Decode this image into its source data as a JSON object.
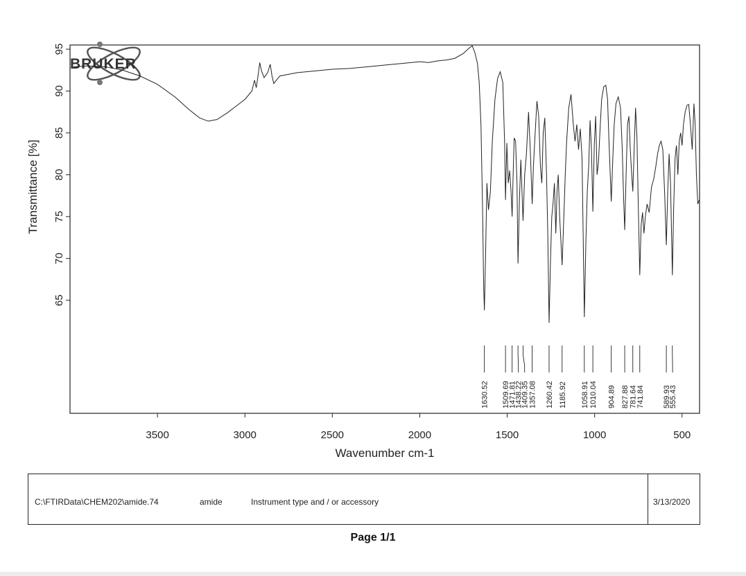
{
  "logo": {
    "text": "BRUKER"
  },
  "chart_data": {
    "type": "line",
    "xlabel": "Wavenumber cm-1",
    "ylabel": "Transmittance [%]",
    "xlim": [
      4000,
      400
    ],
    "ylim": [
      51.5,
      95.5
    ],
    "x_reversed": true,
    "grid": false,
    "x_ticks": [
      3500,
      3000,
      2500,
      2000,
      1500,
      1000,
      500
    ],
    "y_ticks": [
      65,
      70,
      75,
      80,
      85,
      90,
      95
    ],
    "peak_labels": [
      "1630.52",
      "1509.69",
      "1471.81",
      "1438.22",
      "1409.35",
      "1357.08",
      "1260.42",
      "1185.92",
      "1058.91",
      "1010.04",
      "904.89",
      "827.88",
      "781.64",
      "741.84",
      "589.93",
      "555.43"
    ],
    "series": [
      {
        "points": [
          [
            3980,
            92.9
          ],
          [
            3900,
            93.0
          ],
          [
            3800,
            92.9
          ],
          [
            3700,
            92.5
          ],
          [
            3600,
            91.8
          ],
          [
            3500,
            90.8
          ],
          [
            3400,
            89.3
          ],
          [
            3320,
            87.8
          ],
          [
            3260,
            86.8
          ],
          [
            3210,
            86.4
          ],
          [
            3160,
            86.6
          ],
          [
            3100,
            87.4
          ],
          [
            3050,
            88.2
          ],
          [
            3000,
            89.0
          ],
          [
            2960,
            90.0
          ],
          [
            2945,
            91.3
          ],
          [
            2935,
            90.4
          ],
          [
            2925,
            91.8
          ],
          [
            2915,
            93.4
          ],
          [
            2905,
            92.4
          ],
          [
            2890,
            91.6
          ],
          [
            2870,
            92.2
          ],
          [
            2855,
            93.2
          ],
          [
            2845,
            91.8
          ],
          [
            2835,
            90.9
          ],
          [
            2800,
            91.8
          ],
          [
            2700,
            92.2
          ],
          [
            2600,
            92.4
          ],
          [
            2500,
            92.6
          ],
          [
            2400,
            92.7
          ],
          [
            2300,
            92.9
          ],
          [
            2200,
            93.1
          ],
          [
            2100,
            93.3
          ],
          [
            2000,
            93.5
          ],
          [
            1950,
            93.4
          ],
          [
            1900,
            93.6
          ],
          [
            1850,
            93.7
          ],
          [
            1800,
            93.9
          ],
          [
            1750,
            94.5
          ],
          [
            1720,
            95.1
          ],
          [
            1700,
            95.4
          ],
          [
            1685,
            94.6
          ],
          [
            1670,
            93.3
          ],
          [
            1660,
            91.0
          ],
          [
            1650,
            86.0
          ],
          [
            1640,
            75.0
          ],
          [
            1635,
            67.0
          ],
          [
            1630.52,
            63.8
          ],
          [
            1624,
            70.0
          ],
          [
            1616,
            79.0
          ],
          [
            1607,
            75.8
          ],
          [
            1596,
            78.0
          ],
          [
            1585,
            84.0
          ],
          [
            1570,
            89.0
          ],
          [
            1555,
            91.5
          ],
          [
            1540,
            92.3
          ],
          [
            1525,
            91.0
          ],
          [
            1515,
            84.0
          ],
          [
            1509.69,
            77.0
          ],
          [
            1502,
            83.8
          ],
          [
            1494,
            79.0
          ],
          [
            1486,
            80.5
          ],
          [
            1478,
            78.0
          ],
          [
            1471.81,
            75.0
          ],
          [
            1466,
            80.0
          ],
          [
            1460,
            84.4
          ],
          [
            1452,
            84.0
          ],
          [
            1444,
            79.0
          ],
          [
            1438.22,
            69.4
          ],
          [
            1430,
            77.0
          ],
          [
            1422,
            81.8
          ],
          [
            1409.35,
            74.5
          ],
          [
            1400,
            80.0
          ],
          [
            1390,
            82.5
          ],
          [
            1378,
            87.5
          ],
          [
            1368,
            83.0
          ],
          [
            1357.08,
            76.5
          ],
          [
            1350,
            81.0
          ],
          [
            1340,
            85.0
          ],
          [
            1330,
            88.8
          ],
          [
            1320,
            87.0
          ],
          [
            1310,
            81.0
          ],
          [
            1302,
            79.0
          ],
          [
            1294,
            85.0
          ],
          [
            1285,
            86.8
          ],
          [
            1275,
            80.0
          ],
          [
            1268,
            73.0
          ],
          [
            1260.42,
            62.3
          ],
          [
            1252,
            70.0
          ],
          [
            1245,
            75.0
          ],
          [
            1238,
            76.5
          ],
          [
            1230,
            79.0
          ],
          [
            1222,
            73.0
          ],
          [
            1215,
            78.0
          ],
          [
            1208,
            80.0
          ],
          [
            1200,
            75.0
          ],
          [
            1185.92,
            69.2
          ],
          [
            1176,
            75.0
          ],
          [
            1168,
            80.0
          ],
          [
            1160,
            84.0
          ],
          [
            1148,
            88.0
          ],
          [
            1135,
            89.6
          ],
          [
            1122,
            86.0
          ],
          [
            1112,
            84.0
          ],
          [
            1102,
            86.0
          ],
          [
            1092,
            83.0
          ],
          [
            1082,
            85.5
          ],
          [
            1072,
            82.0
          ],
          [
            1065,
            72.0
          ],
          [
            1058.91,
            63.0
          ],
          [
            1050,
            72.0
          ],
          [
            1042,
            78.0
          ],
          [
            1034,
            81.0
          ],
          [
            1026,
            86.5
          ],
          [
            1018,
            83.0
          ],
          [
            1010.04,
            75.6
          ],
          [
            1002,
            83.5
          ],
          [
            994,
            87.0
          ],
          [
            986,
            80.0
          ],
          [
            978,
            81.5
          ],
          [
            970,
            85.0
          ],
          [
            960,
            89.0
          ],
          [
            948,
            90.5
          ],
          [
            936,
            90.7
          ],
          [
            926,
            89.0
          ],
          [
            918,
            84.0
          ],
          [
            904.89,
            76.8
          ],
          [
            896,
            82.0
          ],
          [
            888,
            86.0
          ],
          [
            878,
            88.5
          ],
          [
            865,
            89.3
          ],
          [
            852,
            88.0
          ],
          [
            842,
            83.0
          ],
          [
            834,
            77.0
          ],
          [
            827.88,
            73.4
          ],
          [
            820,
            80.0
          ],
          [
            812,
            86.0
          ],
          [
            804,
            87.0
          ],
          [
            796,
            83.0
          ],
          [
            788,
            80.0
          ],
          [
            781.64,
            78.0
          ],
          [
            774,
            83.0
          ],
          [
            766,
            88.0
          ],
          [
            758,
            84.5
          ],
          [
            750,
            76.0
          ],
          [
            741.84,
            68.0
          ],
          [
            734,
            74.0
          ],
          [
            726,
            75.5
          ],
          [
            718,
            73.0
          ],
          [
            710,
            75.0
          ],
          [
            700,
            76.5
          ],
          [
            688,
            75.5
          ],
          [
            675,
            78.5
          ],
          [
            662,
            79.5
          ],
          [
            650,
            81.0
          ],
          [
            640,
            82.5
          ],
          [
            630,
            83.5
          ],
          [
            620,
            84.0
          ],
          [
            610,
            83.0
          ],
          [
            600,
            78.0
          ],
          [
            589.93,
            71.6
          ],
          [
            582,
            78.0
          ],
          [
            574,
            82.5
          ],
          [
            566,
            79.0
          ],
          [
            555.43,
            68.0
          ],
          [
            548,
            76.0
          ],
          [
            540,
            82.0
          ],
          [
            532,
            83.5
          ],
          [
            524,
            80.0
          ],
          [
            516,
            84.0
          ],
          [
            508,
            85.0
          ],
          [
            500,
            83.5
          ],
          [
            492,
            86.0
          ],
          [
            482,
            87.5
          ],
          [
            472,
            88.3
          ],
          [
            462,
            88.4
          ],
          [
            452,
            86.0
          ],
          [
            442,
            83.0
          ],
          [
            432,
            88.5
          ],
          [
            425,
            86.0
          ],
          [
            418,
            80.0
          ],
          [
            410,
            76.5
          ],
          [
            402,
            77.0
          ]
        ]
      }
    ]
  },
  "footer": {
    "path": "C:\\FTIRData\\CHEM202\\amide.74",
    "sample": "amide",
    "instrument": "Instrument type and / or accessory",
    "date": "3/13/2020"
  },
  "page": {
    "label": "Page 1/1"
  }
}
